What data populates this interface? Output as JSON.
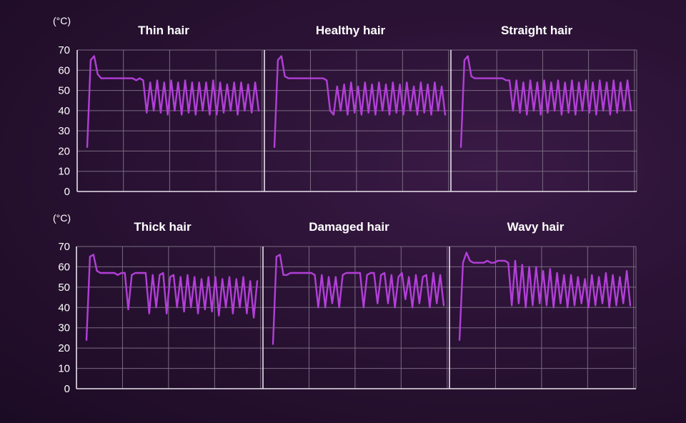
{
  "colors": {
    "line": "#b23fd8",
    "grid": "#7a6a82",
    "axis": "#e8e2ec",
    "text": "#ffffff"
  },
  "chart_data": [
    {
      "type": "line",
      "row": 1,
      "unit": "(°C)",
      "ylim": [
        0,
        70
      ],
      "yticks": [
        "0",
        "10",
        "20",
        "30",
        "40",
        "50",
        "60",
        "70"
      ],
      "grid": true,
      "panels": [
        {
          "title": "Thin hair",
          "series": [
            {
              "values": [
                22,
                65,
                67,
                58,
                56,
                56,
                56,
                56,
                56,
                56,
                56,
                56,
                56,
                56,
                55,
                56,
                55,
                39,
                54,
                40,
                55,
                39,
                54,
                38,
                55,
                40,
                54,
                38,
                55,
                39,
                54,
                38,
                54,
                40,
                54,
                38,
                55,
                38,
                54,
                39,
                53,
                40,
                54,
                38,
                54,
                40,
                53,
                39,
                54,
                40
              ]
            }
          ]
        },
        {
          "title": "Healthy hair",
          "series": [
            {
              "values": [
                22,
                65,
                67,
                57,
                56,
                56,
                56,
                56,
                56,
                56,
                56,
                56,
                56,
                56,
                56,
                55,
                40,
                38,
                52,
                40,
                53,
                38,
                54,
                39,
                52,
                38,
                54,
                39,
                53,
                38,
                54,
                40,
                53,
                38,
                54,
                39,
                53,
                38,
                54,
                40,
                52,
                38,
                54,
                39,
                53,
                38,
                54,
                40,
                52,
                38
              ]
            }
          ]
        },
        {
          "title": "Straight hair",
          "series": [
            {
              "values": [
                22,
                65,
                67,
                57,
                56,
                56,
                56,
                56,
                56,
                56,
                56,
                56,
                56,
                55,
                55,
                40,
                55,
                39,
                54,
                38,
                55,
                40,
                54,
                38,
                55,
                39,
                54,
                40,
                55,
                38,
                54,
                39,
                55,
                38,
                54,
                40,
                55,
                39,
                54,
                38,
                55,
                40,
                54,
                38,
                55,
                39,
                54,
                40,
                55,
                40
              ]
            }
          ]
        }
      ]
    },
    {
      "type": "line",
      "row": 2,
      "unit": "(°C)",
      "ylim": [
        0,
        70
      ],
      "yticks": [
        "0",
        "10",
        "20",
        "30",
        "40",
        "50",
        "60",
        "70"
      ],
      "grid": true,
      "panels": [
        {
          "title": "Thick hair",
          "series": [
            {
              "values": [
                24,
                65,
                66,
                58,
                57,
                57,
                57,
                57,
                57,
                56,
                57,
                57,
                39,
                56,
                57,
                57,
                57,
                57,
                37,
                56,
                40,
                56,
                57,
                37,
                55,
                56,
                40,
                55,
                38,
                56,
                40,
                55,
                37,
                54,
                39,
                55,
                38,
                55,
                36,
                54,
                40,
                55,
                37,
                54,
                40,
                55,
                37,
                53,
                35,
                53
              ]
            }
          ]
        },
        {
          "title": "Damaged hair",
          "series": [
            {
              "values": [
                22,
                65,
                66,
                56,
                56,
                57,
                57,
                57,
                57,
                57,
                57,
                57,
                56,
                40,
                56,
                40,
                55,
                42,
                55,
                40,
                56,
                57,
                57,
                57,
                57,
                57,
                40,
                56,
                57,
                57,
                42,
                56,
                57,
                42,
                56,
                40,
                55,
                57,
                44,
                55,
                40,
                56,
                42,
                55,
                56,
                40,
                57,
                42,
                56,
                41
              ]
            }
          ]
        },
        {
          "title": "Wavy hair",
          "series": [
            {
              "values": [
                24,
                62,
                67,
                63,
                62,
                62,
                62,
                62,
                63,
                62,
                62,
                63,
                63,
                63,
                62,
                41,
                63,
                42,
                61,
                40,
                60,
                41,
                60,
                42,
                58,
                41,
                59,
                40,
                57,
                42,
                56,
                40,
                56,
                41,
                55,
                42,
                54,
                40,
                56,
                41,
                55,
                42,
                57,
                40,
                56,
                41,
                55,
                42,
                58,
                41
              ]
            }
          ]
        }
      ]
    }
  ]
}
